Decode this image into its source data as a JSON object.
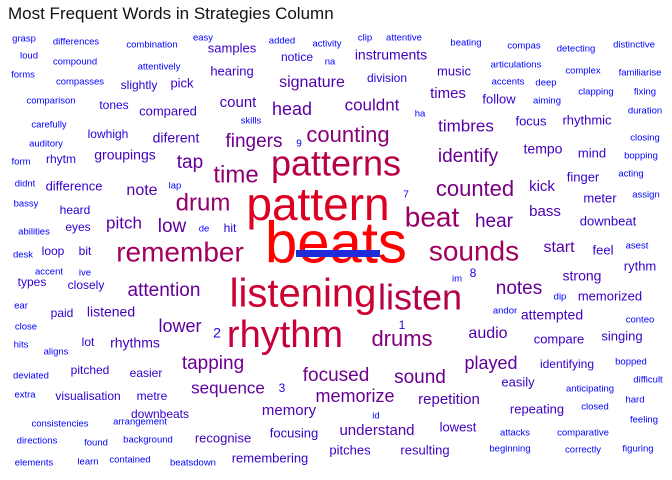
{
  "chart_data": {
    "type": "wordcloud",
    "title": "Most Frequent Words in Strategies Column",
    "color_scale": [
      "#0000ff",
      "#ff0000"
    ],
    "words": [
      {
        "text": "beats",
        "count": 100
      },
      {
        "text": "pattern",
        "count": 80
      },
      {
        "text": "listening",
        "count": 72
      },
      {
        "text": "rhythm",
        "count": 68
      },
      {
        "text": "patterns",
        "count": 62
      },
      {
        "text": "listen",
        "count": 60
      },
      {
        "text": "remember",
        "count": 52
      },
      {
        "text": "sounds",
        "count": 52
      },
      {
        "text": "beat",
        "count": 48
      },
      {
        "text": "drum",
        "count": 45
      },
      {
        "text": "time",
        "count": 44
      },
      {
        "text": "counting",
        "count": 42
      },
      {
        "text": "drums",
        "count": 40
      },
      {
        "text": "counted",
        "count": 38
      },
      {
        "text": "focused",
        "count": 34
      },
      {
        "text": "tapping",
        "count": 33
      },
      {
        "text": "fingers",
        "count": 33
      },
      {
        "text": "identify",
        "count": 32
      },
      {
        "text": "sound",
        "count": 32
      },
      {
        "text": "memorize",
        "count": 32
      },
      {
        "text": "attention",
        "count": 31
      },
      {
        "text": "notes",
        "count": 31
      },
      {
        "text": "hear",
        "count": 30
      },
      {
        "text": "played",
        "count": 30
      },
      {
        "text": "low",
        "count": 30
      },
      {
        "text": "tap",
        "count": 30
      },
      {
        "text": "sequence",
        "count": 29
      },
      {
        "text": "lower",
        "count": 28
      },
      {
        "text": "head",
        "count": 28
      },
      {
        "text": "couldnt",
        "count": 28
      },
      {
        "text": "timbres",
        "count": 27
      },
      {
        "text": "pitch",
        "count": 27
      },
      {
        "text": "note",
        "count": 26
      },
      {
        "text": "signature",
        "count": 26
      },
      {
        "text": "start",
        "count": 26
      },
      {
        "text": "audio",
        "count": 26
      },
      {
        "text": "bass",
        "count": 25
      },
      {
        "text": "understand",
        "count": 25
      },
      {
        "text": "memory",
        "count": 24
      },
      {
        "text": "repetition",
        "count": 24
      },
      {
        "text": "kick",
        "count": 24
      },
      {
        "text": "times",
        "count": 24
      },
      {
        "text": "count",
        "count": 23
      },
      {
        "text": "tempo",
        "count": 23
      },
      {
        "text": "strong",
        "count": 23
      },
      {
        "text": "attempted",
        "count": 23
      },
      {
        "text": "rhythms",
        "count": 23
      },
      {
        "text": "listened",
        "count": 22
      },
      {
        "text": "groupings",
        "count": 22
      },
      {
        "text": "diferent",
        "count": 22
      },
      {
        "text": "instruments",
        "count": 22
      },
      {
        "text": "recognise",
        "count": 22
      },
      {
        "text": "pitches",
        "count": 21
      },
      {
        "text": "resulting",
        "count": 21
      },
      {
        "text": "repeating",
        "count": 21
      },
      {
        "text": "lowest",
        "count": 21
      },
      {
        "text": "pick",
        "count": 20
      },
      {
        "text": "hearing",
        "count": 20
      },
      {
        "text": "compared",
        "count": 20
      },
      {
        "text": "samples",
        "count": 20
      },
      {
        "text": "difference",
        "count": 20
      },
      {
        "text": "focusing",
        "count": 20
      },
      {
        "text": "remembering",
        "count": 20
      },
      {
        "text": "downbeats",
        "count": 20
      },
      {
        "text": "music",
        "count": 20
      },
      {
        "text": "follow",
        "count": 20
      },
      {
        "text": "focus",
        "count": 20
      },
      {
        "text": "rhythmic",
        "count": 20
      },
      {
        "text": "mind",
        "count": 20
      },
      {
        "text": "finger",
        "count": 20
      },
      {
        "text": "meter",
        "count": 20
      },
      {
        "text": "downbeat",
        "count": 20
      },
      {
        "text": "feel",
        "count": 20
      },
      {
        "text": "rythm",
        "count": 20
      },
      {
        "text": "memorized",
        "count": 20
      },
      {
        "text": "singing",
        "count": 20
      },
      {
        "text": "compare",
        "count": 20
      },
      {
        "text": "identifying",
        "count": 20
      },
      {
        "text": "easily",
        "count": 20
      },
      {
        "text": "visualisation",
        "count": 19
      },
      {
        "text": "metre",
        "count": 19
      },
      {
        "text": "easier",
        "count": 19
      },
      {
        "text": "pitched",
        "count": 19
      },
      {
        "text": "lot",
        "count": 19
      },
      {
        "text": "paid",
        "count": 19
      },
      {
        "text": "closely",
        "count": 19
      },
      {
        "text": "types",
        "count": 19
      },
      {
        "text": "loop",
        "count": 19
      },
      {
        "text": "bit",
        "count": 19
      },
      {
        "text": "eyes",
        "count": 19
      },
      {
        "text": "heard",
        "count": 18
      },
      {
        "text": "hit",
        "count": 18
      },
      {
        "text": "lowhigh",
        "count": 18
      },
      {
        "text": "rhytm",
        "count": 18
      },
      {
        "text": "tones",
        "count": 18
      },
      {
        "text": "slightly",
        "count": 18
      },
      {
        "text": "division",
        "count": 18
      },
      {
        "text": "notice",
        "count": 18
      },
      {
        "text": "2",
        "count": 18
      },
      {
        "text": "3",
        "count": 17
      },
      {
        "text": "1",
        "count": 17
      },
      {
        "text": "8",
        "count": 17
      },
      {
        "text": "7",
        "count": 15
      },
      {
        "text": "9",
        "count": 15
      },
      {
        "text": "grasp",
        "count": 15
      },
      {
        "text": "differences",
        "count": 15
      },
      {
        "text": "combination",
        "count": 15
      },
      {
        "text": "easy",
        "count": 15
      },
      {
        "text": "added",
        "count": 15
      },
      {
        "text": "activity",
        "count": 15
      },
      {
        "text": "clip",
        "count": 15
      },
      {
        "text": "attentive",
        "count": 15
      },
      {
        "text": "beating",
        "count": 15
      },
      {
        "text": "compas",
        "count": 15
      },
      {
        "text": "detecting",
        "count": 15
      },
      {
        "text": "distinctive",
        "count": 15
      },
      {
        "text": "loud",
        "count": 15
      },
      {
        "text": "compound",
        "count": 15
      },
      {
        "text": "attentively",
        "count": 15
      },
      {
        "text": "na",
        "count": 15
      },
      {
        "text": "articulations",
        "count": 15
      },
      {
        "text": "complex",
        "count": 15
      },
      {
        "text": "familiarise",
        "count": 15
      },
      {
        "text": "forms",
        "count": 15
      },
      {
        "text": "compasses",
        "count": 15
      },
      {
        "text": "accents",
        "count": 15
      },
      {
        "text": "deep",
        "count": 15
      },
      {
        "text": "clapping",
        "count": 15
      },
      {
        "text": "fixing",
        "count": 15
      },
      {
        "text": "comparison",
        "count": 15
      },
      {
        "text": "aiming",
        "count": 15
      },
      {
        "text": "duration",
        "count": 15
      },
      {
        "text": "skills",
        "count": 15
      },
      {
        "text": "ha",
        "count": 15
      },
      {
        "text": "carefully",
        "count": 15
      },
      {
        "text": "closing",
        "count": 15
      },
      {
        "text": "auditory",
        "count": 15
      },
      {
        "text": "bopping",
        "count": 15
      },
      {
        "text": "form",
        "count": 15
      },
      {
        "text": "acting",
        "count": 15
      },
      {
        "text": "didnt",
        "count": 15
      },
      {
        "text": "assign",
        "count": 15
      },
      {
        "text": "lap",
        "count": 15
      },
      {
        "text": "bassy",
        "count": 15
      },
      {
        "text": "abilities",
        "count": 15
      },
      {
        "text": "de",
        "count": 15
      },
      {
        "text": "asest",
        "count": 15
      },
      {
        "text": "desk",
        "count": 15
      },
      {
        "text": "accent",
        "count": 15
      },
      {
        "text": "ive",
        "count": 15
      },
      {
        "text": "im",
        "count": 15
      },
      {
        "text": "ear",
        "count": 15
      },
      {
        "text": "dip",
        "count": 15
      },
      {
        "text": "andor",
        "count": 15
      },
      {
        "text": "close",
        "count": 15
      },
      {
        "text": "conteo",
        "count": 15
      },
      {
        "text": "hits",
        "count": 15
      },
      {
        "text": "aligns",
        "count": 15
      },
      {
        "text": "bopped",
        "count": 15
      },
      {
        "text": "deviated",
        "count": 15
      },
      {
        "text": "difficult",
        "count": 15
      },
      {
        "text": "anticipating",
        "count": 15
      },
      {
        "text": "extra",
        "count": 15
      },
      {
        "text": "hard",
        "count": 15
      },
      {
        "text": "closed",
        "count": 15
      },
      {
        "text": "id",
        "count": 15
      },
      {
        "text": "feeling",
        "count": 15
      },
      {
        "text": "consistencies",
        "count": 15
      },
      {
        "text": "arrangement",
        "count": 15
      },
      {
        "text": "comparative",
        "count": 15
      },
      {
        "text": "directions",
        "count": 15
      },
      {
        "text": "found",
        "count": 15
      },
      {
        "text": "background",
        "count": 15
      },
      {
        "text": "attacks",
        "count": 15
      },
      {
        "text": "beginning",
        "count": 15
      },
      {
        "text": "correctly",
        "count": 15
      },
      {
        "text": "figuring",
        "count": 15
      },
      {
        "text": "elements",
        "count": 15
      },
      {
        "text": "learn",
        "count": 15
      },
      {
        "text": "contained",
        "count": 15
      },
      {
        "text": "beatsdown",
        "count": 15
      }
    ]
  }
}
